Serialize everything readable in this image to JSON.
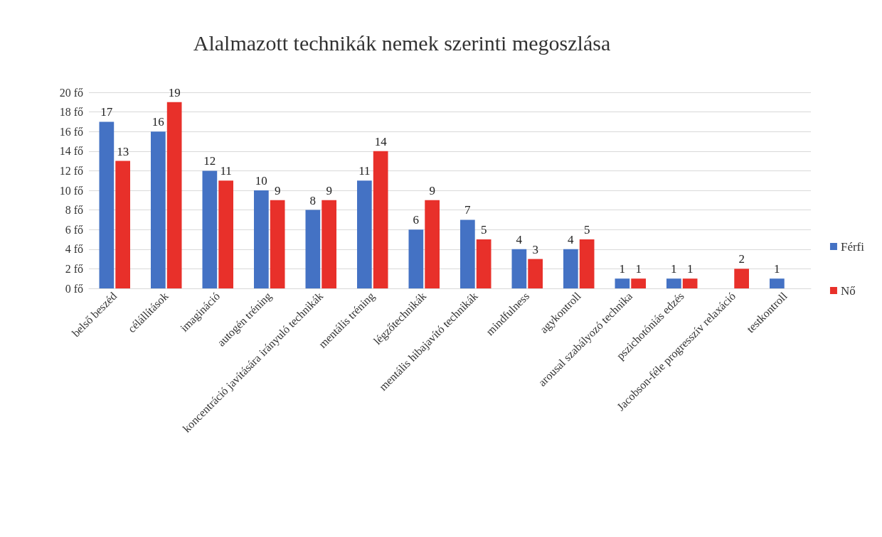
{
  "chart_data": {
    "type": "bar",
    "title": "Alalmazott technikák nemek szerinti megoszlása",
    "categories": [
      "belső beszéd",
      "célállítások",
      "imagináció",
      "autogén tréning",
      "koncentráció javítására irányuló technikák",
      "mentális tréning",
      "légzőtechnikák",
      "mentális hibajavító technikák",
      "mindfulness",
      "agykontroll",
      "arousal szabályozó technika",
      "pszichotóniás edzés",
      "Jacobson-féle progresszív relaxáció",
      "testkontroll"
    ],
    "series": [
      {
        "name": "Férfi",
        "color": "#4472c4",
        "values": [
          17,
          16,
          12,
          10,
          8,
          11,
          6,
          7,
          4,
          4,
          1,
          1,
          null,
          1
        ]
      },
      {
        "name": "Nő",
        "color": "#e8302a",
        "values": [
          13,
          19,
          11,
          9,
          9,
          14,
          9,
          5,
          3,
          5,
          1,
          1,
          2,
          null
        ]
      }
    ],
    "ylim": [
      0,
      20
    ],
    "yticks": [
      {
        "value": 0,
        "label": "0 fő"
      },
      {
        "value": 2,
        "label": "2 fő"
      },
      {
        "value": 4,
        "label": "4 fő"
      },
      {
        "value": 6,
        "label": "6 fő"
      },
      {
        "value": 8,
        "label": "8 fő"
      },
      {
        "value": 10,
        "label": "10 fő"
      },
      {
        "value": 12,
        "label": "12 fő"
      },
      {
        "value": 14,
        "label": "14 fő"
      },
      {
        "value": 16,
        "label": "16 fő"
      },
      {
        "value": 18,
        "label": "18 fő"
      },
      {
        "value": 20,
        "label": "20 fő"
      }
    ],
    "grid": "y",
    "legend": "right",
    "data_labels": true
  }
}
